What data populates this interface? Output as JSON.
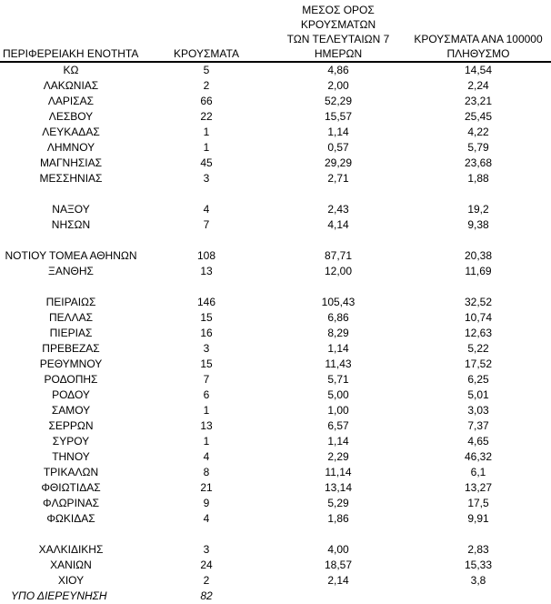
{
  "table": {
    "header": {
      "region": "ΠΕΡΙΦΕΡΕΙΑΚΗ ΕΝΟΤΗΤΑ",
      "cases": "ΚΡΟΥΣΜΑΤΑ",
      "avg7_lines": [
        "ΜΕΣΟΣ ΟΡΟΣ ΚΡΟΥΣΜΑΤΩΝ",
        "ΤΩΝ ΤΕΛΕΥΤΑΙΩΝ 7",
        "ΗΜΕΡΩΝ"
      ],
      "per100k_lines": [
        "ΚΡΟΥΣΜΑΤΑ ΑΝΑ 100000",
        "ΠΛΗΘΥΣΜΟ"
      ]
    },
    "rows": [
      {
        "region": "ΚΩ",
        "cases": "5",
        "avg_7day": "4,86",
        "per_100k": "14,54"
      },
      {
        "region": "ΛΑΚΩΝΙΑΣ",
        "cases": "2",
        "avg_7day": "2,00",
        "per_100k": "2,24"
      },
      {
        "region": "ΛΑΡΙΣΑΣ",
        "cases": "66",
        "avg_7day": "52,29",
        "per_100k": "23,21"
      },
      {
        "region": "ΛΕΣΒΟΥ",
        "cases": "22",
        "avg_7day": "15,57",
        "per_100k": "25,45"
      },
      {
        "region": "ΛΕΥΚΑΔΑΣ",
        "cases": "1",
        "avg_7day": "1,14",
        "per_100k": "4,22"
      },
      {
        "region": "ΛΗΜΝΟΥ",
        "cases": "1",
        "avg_7day": "0,57",
        "per_100k": "5,79"
      },
      {
        "region": "ΜΑΓΝΗΣΙΑΣ",
        "cases": "45",
        "avg_7day": "29,29",
        "per_100k": "23,68"
      },
      {
        "region": "ΜΕΣΣΗΝΙΑΣ",
        "cases": "3",
        "avg_7day": "2,71",
        "per_100k": "1,88"
      },
      {
        "region": "ΝΑΞΟΥ",
        "cases": "4",
        "avg_7day": "2,43",
        "per_100k": "19,2",
        "gap_before": true
      },
      {
        "region": "ΝΗΣΩΝ",
        "cases": "7",
        "avg_7day": "4,14",
        "per_100k": "9,38"
      },
      {
        "region": "ΝΟΤΙΟΥ ΤΟΜΕΑ ΑΘΗΝΩΝ",
        "cases": "108",
        "avg_7day": "87,71",
        "per_100k": "20,38",
        "gap_before": true
      },
      {
        "region": "ΞΑΝΘΗΣ",
        "cases": "13",
        "avg_7day": "12,00",
        "per_100k": "11,69"
      },
      {
        "region": "ΠΕΙΡΑΙΩΣ",
        "cases": "146",
        "avg_7day": "105,43",
        "per_100k": "32,52",
        "gap_before": true
      },
      {
        "region": "ΠΕΛΛΑΣ",
        "cases": "15",
        "avg_7day": "6,86",
        "per_100k": "10,74"
      },
      {
        "region": "ΠΙΕΡΙΑΣ",
        "cases": "16",
        "avg_7day": "8,29",
        "per_100k": "12,63"
      },
      {
        "region": "ΠΡΕΒΕΖΑΣ",
        "cases": "3",
        "avg_7day": "1,14",
        "per_100k": "5,22"
      },
      {
        "region": "ΡΕΘΥΜΝΟΥ",
        "cases": "15",
        "avg_7day": "11,43",
        "per_100k": "17,52"
      },
      {
        "region": "ΡΟΔΟΠΗΣ",
        "cases": "7",
        "avg_7day": "5,71",
        "per_100k": "6,25"
      },
      {
        "region": "ΡΟΔΟΥ",
        "cases": "6",
        "avg_7day": "5,00",
        "per_100k": "5,01"
      },
      {
        "region": "ΣΑΜΟΥ",
        "cases": "1",
        "avg_7day": "1,00",
        "per_100k": "3,03"
      },
      {
        "region": "ΣΕΡΡΩΝ",
        "cases": "13",
        "avg_7day": "6,57",
        "per_100k": "7,37"
      },
      {
        "region": "ΣΥΡΟΥ",
        "cases": "1",
        "avg_7day": "1,14",
        "per_100k": "4,65"
      },
      {
        "region": "ΤΗΝΟΥ",
        "cases": "4",
        "avg_7day": "2,29",
        "per_100k": "46,32"
      },
      {
        "region": "ΤΡΙΚΑΛΩΝ",
        "cases": "8",
        "avg_7day": "11,14",
        "per_100k": "6,1"
      },
      {
        "region": "ΦΘΙΩΤΙΔΑΣ",
        "cases": "21",
        "avg_7day": "13,14",
        "per_100k": "13,27"
      },
      {
        "region": "ΦΛΩΡΙΝΑΣ",
        "cases": "9",
        "avg_7day": "5,29",
        "per_100k": "17,5"
      },
      {
        "region": "ΦΩΚΙΔΑΣ",
        "cases": "4",
        "avg_7day": "1,86",
        "per_100k": "9,91"
      },
      {
        "region": "ΧΑΛΚΙΔΙΚΗΣ",
        "cases": "3",
        "avg_7day": "4,00",
        "per_100k": "2,83",
        "gap_before": true
      },
      {
        "region": "ΧΑΝΙΩΝ",
        "cases": "24",
        "avg_7day": "18,57",
        "per_100k": "15,33"
      },
      {
        "region": "ΧΙΟΥ",
        "cases": "2",
        "avg_7day": "2,14",
        "per_100k": "3,8"
      },
      {
        "region": "ΥΠΟ ΔΙΕΡΕΥΝΗΣΗ",
        "cases": "82",
        "avg_7day": "",
        "per_100k": "",
        "italic": true
      }
    ],
    "colors": {
      "text": "#000000",
      "background": "#ffffff",
      "rule": "#000000"
    }
  }
}
